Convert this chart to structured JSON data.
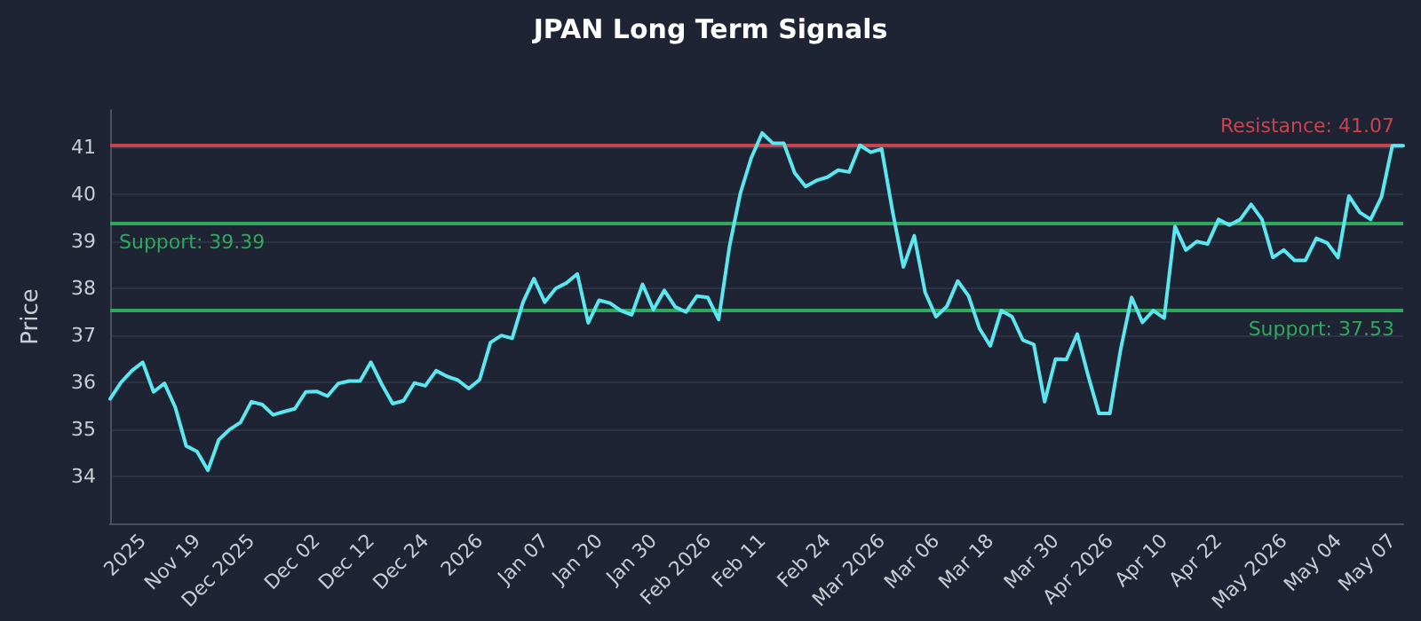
{
  "chart_data": {
    "type": "line",
    "title": "JPAN Long Term Signals",
    "ylabel": "Price",
    "categories": [
      null,
      null,
      null,
      "2025",
      null,
      null,
      null,
      null,
      "Nov 19",
      null,
      null,
      null,
      null,
      "Dec 2025",
      null,
      null,
      null,
      null,
      null,
      "Dec 02",
      null,
      null,
      null,
      null,
      "Dec 12",
      null,
      null,
      null,
      null,
      "Dec 24",
      null,
      null,
      null,
      null,
      "2026",
      null,
      null,
      null,
      null,
      null,
      "Jan 07",
      null,
      null,
      null,
      null,
      "Jan 20",
      null,
      null,
      null,
      null,
      "Jan 30",
      null,
      null,
      null,
      null,
      "Feb 2026",
      null,
      null,
      null,
      null,
      "Feb 11",
      null,
      null,
      null,
      null,
      null,
      "Feb 24",
      null,
      null,
      null,
      null,
      "Mar 2026",
      null,
      null,
      null,
      null,
      "Mar 06",
      null,
      null,
      null,
      null,
      "Mar 18",
      null,
      null,
      null,
      null,
      null,
      "Mar 30",
      null,
      null,
      null,
      null,
      "Apr 2026",
      null,
      null,
      null,
      null,
      "Apr 10",
      null,
      null,
      null,
      null,
      "Apr 22",
      null,
      null,
      null,
      null,
      null,
      "May 2026",
      null,
      null,
      null,
      null,
      "May 04",
      null,
      null,
      null,
      null,
      "May 07",
      null
    ],
    "series": [
      {
        "color": "#5ce6f0",
        "values": [
          35.65,
          36.0,
          36.25,
          36.43,
          35.8,
          35.98,
          35.47,
          34.65,
          34.53,
          34.13,
          34.78,
          35.0,
          35.15,
          35.59,
          35.53,
          35.31,
          35.38,
          35.44,
          35.8,
          35.81,
          35.71,
          35.98,
          36.03,
          36.03,
          36.43,
          35.96,
          35.55,
          35.61,
          35.99,
          35.93,
          36.25,
          36.13,
          36.05,
          35.87,
          36.06,
          36.85,
          37.0,
          36.94,
          37.71,
          38.21,
          37.71,
          38.0,
          38.12,
          38.31,
          37.27,
          37.75,
          37.69,
          37.53,
          37.44,
          38.09,
          37.55,
          37.96,
          37.61,
          37.5,
          37.84,
          37.81,
          37.34,
          38.9,
          40.03,
          40.78,
          41.31,
          41.09,
          41.09,
          40.46,
          40.17,
          40.3,
          40.37,
          40.52,
          40.48,
          41.05,
          40.9,
          40.97,
          39.65,
          38.46,
          39.12,
          37.92,
          37.4,
          37.62,
          38.16,
          37.84,
          37.15,
          36.78,
          37.53,
          37.4,
          36.9,
          36.81,
          35.59,
          36.5,
          36.49,
          37.03,
          36.15,
          35.34,
          35.34,
          36.71,
          37.81,
          37.28,
          37.53,
          37.37,
          39.32,
          38.82,
          39.0,
          38.95,
          39.47,
          39.35,
          39.47,
          39.79,
          39.47,
          38.66,
          38.82,
          38.6,
          38.6,
          39.07,
          38.97,
          38.66,
          39.97,
          39.62,
          39.47,
          39.95,
          41.04,
          41.04
        ]
      }
    ],
    "ylim": [
      33,
      41.8
    ],
    "yticks": [
      34,
      35,
      36,
      37,
      38,
      39,
      40,
      41
    ],
    "grid": "y",
    "marker": "none",
    "line_style": "solid",
    "ref_lines": [
      {
        "axis": "y",
        "value": 41.07,
        "label": "Resistance: 41.07",
        "color": "#c8444f"
      },
      {
        "axis": "y",
        "value": 39.39,
        "label": "Support: 39.39",
        "color": "#2fa85e"
      },
      {
        "axis": "y",
        "value": 37.53,
        "label": "Support: 37.53",
        "color": "#2fa85e"
      }
    ]
  }
}
